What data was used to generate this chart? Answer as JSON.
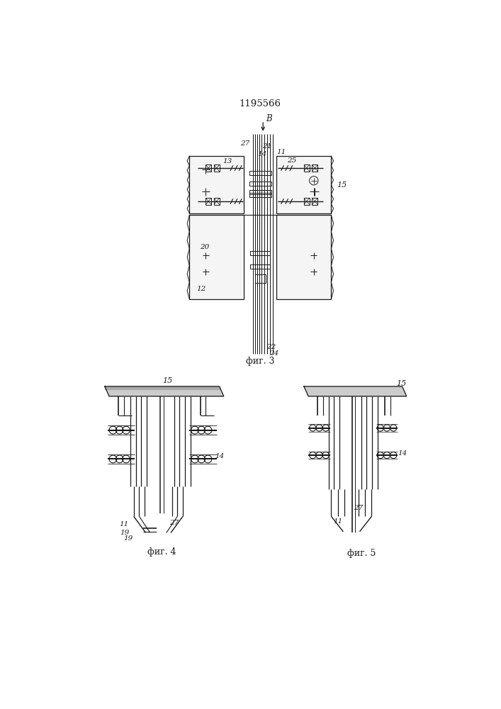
{
  "title": "1195566",
  "fig3_label": "фиг. 3",
  "fig4_label": "фиг. 4",
  "fig5_label": "фиг. 5",
  "bg_color": "#ffffff",
  "line_color": "#1a1a1a"
}
